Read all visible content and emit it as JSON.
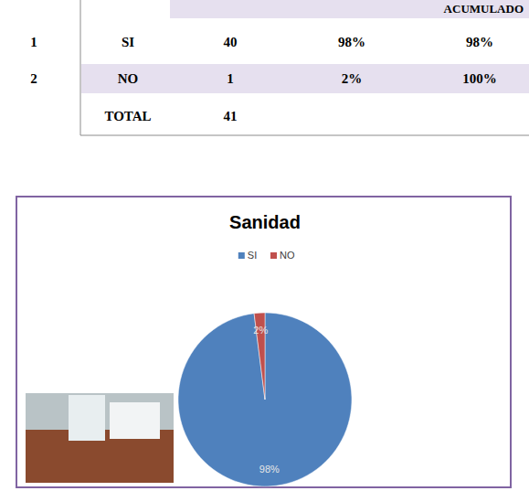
{
  "table": {
    "header": [
      "ACUMULADO"
    ],
    "rows": [
      {
        "n": "1",
        "answer": "SI",
        "count": "40",
        "percent": "98%",
        "cumulative": "98%"
      },
      {
        "n": "2",
        "answer": "NO",
        "count": "1",
        "percent": "2%",
        "cumulative": "100%"
      },
      {
        "answer": "TOTAL",
        "count": "41"
      }
    ]
  },
  "chart_data": {
    "type": "pie",
    "title": "Sanidad",
    "categories": [
      "SI",
      "NO"
    ],
    "values": [
      98,
      2
    ],
    "value_labels": [
      "98%",
      "2%"
    ],
    "colors": [
      "#4f81bd",
      "#c0504d"
    ],
    "legend": "top",
    "data_labels": true
  }
}
